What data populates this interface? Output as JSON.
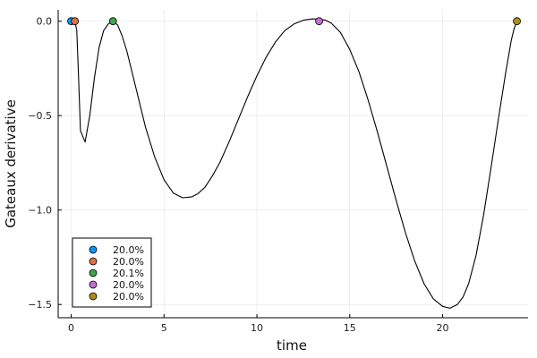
{
  "chart_data": {
    "type": "line",
    "xlabel": "time",
    "ylabel": "Gateaux derivative",
    "xlim": [
      -0.7,
      24.6
    ],
    "ylim": [
      -1.57,
      0.06
    ],
    "xticks": [
      0,
      5,
      10,
      15,
      20
    ],
    "yticks": [
      0.0,
      -0.5,
      -1.0,
      -1.5
    ],
    "xtick_labels": [
      "0",
      "5",
      "10",
      "15",
      "20"
    ],
    "ytick_labels": [
      "0.0",
      "−0.5",
      "−1.0",
      "−1.5"
    ],
    "grid": true,
    "legend_position": "bottom-left",
    "curve": {
      "color": "#000000",
      "x": [
        0.0,
        0.1,
        0.2,
        0.3,
        0.4,
        0.5,
        0.75,
        1.0,
        1.25,
        1.5,
        1.75,
        2.0,
        2.25,
        2.5,
        2.75,
        3.0,
        3.5,
        4.0,
        4.5,
        5.0,
        5.5,
        6.0,
        6.5,
        6.8,
        7.2,
        7.6,
        8.0,
        8.5,
        9.0,
        9.5,
        10.0,
        10.5,
        11.0,
        11.5,
        12.0,
        12.5,
        13.0,
        13.35,
        13.7,
        14.0,
        14.5,
        15.0,
        15.5,
        16.0,
        16.5,
        17.0,
        17.5,
        18.0,
        18.5,
        19.0,
        19.5,
        20.0,
        20.4,
        20.8,
        21.1,
        21.4,
        21.8,
        22.2,
        22.6,
        23.0,
        23.4,
        23.7,
        23.85,
        24.0
      ],
      "y": [
        0.0,
        0.0,
        0.0,
        -0.05,
        -0.3,
        -0.58,
        -0.64,
        -0.5,
        -0.3,
        -0.14,
        -0.05,
        -0.015,
        0.0,
        -0.02,
        -0.08,
        -0.16,
        -0.36,
        -0.56,
        -0.72,
        -0.84,
        -0.91,
        -0.935,
        -0.93,
        -0.915,
        -0.88,
        -0.82,
        -0.75,
        -0.64,
        -0.52,
        -0.4,
        -0.29,
        -0.19,
        -0.11,
        -0.05,
        -0.015,
        0.005,
        0.012,
        0.01,
        0.005,
        -0.01,
        -0.06,
        -0.15,
        -0.27,
        -0.42,
        -0.59,
        -0.77,
        -0.95,
        -1.12,
        -1.27,
        -1.39,
        -1.47,
        -1.51,
        -1.52,
        -1.5,
        -1.46,
        -1.39,
        -1.24,
        -1.03,
        -0.78,
        -0.52,
        -0.27,
        -0.1,
        -0.04,
        0.0
      ]
    },
    "series": [
      {
        "name": "20.0%",
        "color": "#009af9",
        "x": 0.0,
        "y": 0.0
      },
      {
        "name": "20.0%",
        "color": "#e26f46",
        "x": 0.2,
        "y": 0.0
      },
      {
        "name": "20.1%",
        "color": "#3ea44e",
        "x": 2.25,
        "y": 0.0
      },
      {
        "name": "20.0%",
        "color": "#c271d2",
        "x": 13.35,
        "y": 0.0
      },
      {
        "name": "20.0%",
        "color": "#ac8e18",
        "x": 24.0,
        "y": 0.0
      }
    ]
  }
}
